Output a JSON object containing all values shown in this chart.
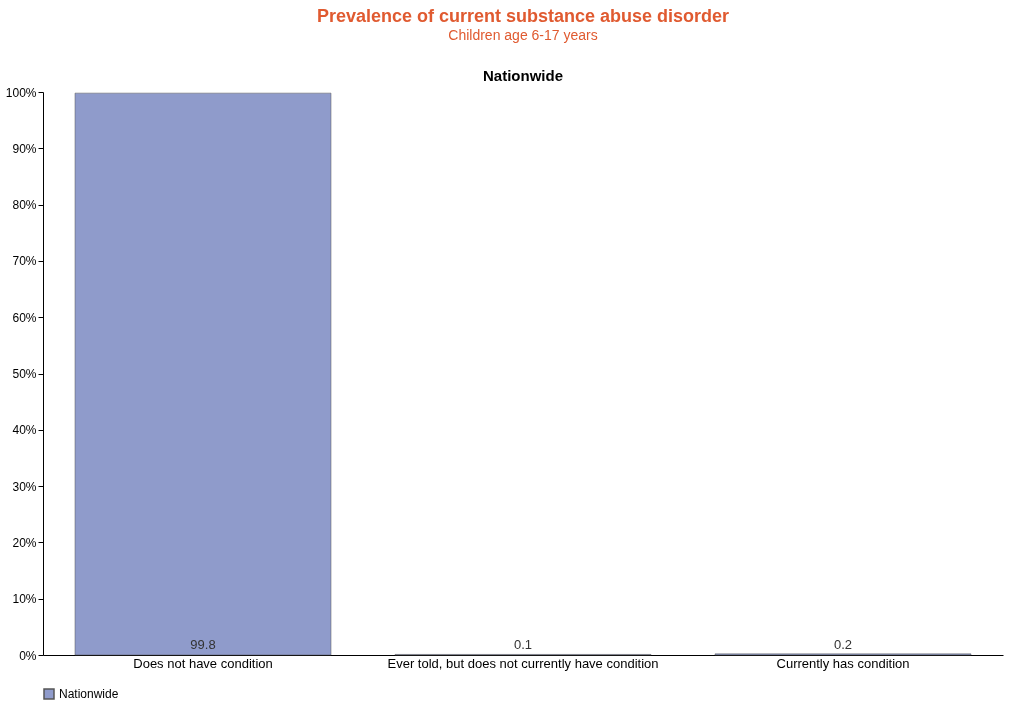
{
  "chart_data": {
    "type": "bar",
    "title": "Prevalence of current substance abuse disorder",
    "subtitle": "Children age 6-17 years",
    "annotations": [
      "Nationwide"
    ],
    "categories": [
      "Does not have condition",
      "Ever told, but does not currently have condition",
      "Currently has condition"
    ],
    "series": [
      {
        "name": "Nationwide",
        "color": "#8f9bcb",
        "values": [
          99.8,
          0.1,
          0.2
        ]
      }
    ],
    "ylim": [
      0,
      100
    ],
    "yticks": [
      {
        "value": 0,
        "label": "0%"
      },
      {
        "value": 10,
        "label": "10%"
      },
      {
        "value": 20,
        "label": "20%"
      },
      {
        "value": 30,
        "label": "30%"
      },
      {
        "value": 40,
        "label": "40%"
      },
      {
        "value": 50,
        "label": "50%"
      },
      {
        "value": 60,
        "label": "60%"
      },
      {
        "value": 70,
        "label": "70%"
      },
      {
        "value": 80,
        "label": "80%"
      },
      {
        "value": 90,
        "label": "90%"
      },
      {
        "value": 100,
        "label": "100%"
      }
    ],
    "data_labels": true,
    "grid": false,
    "legend": "bottom"
  }
}
